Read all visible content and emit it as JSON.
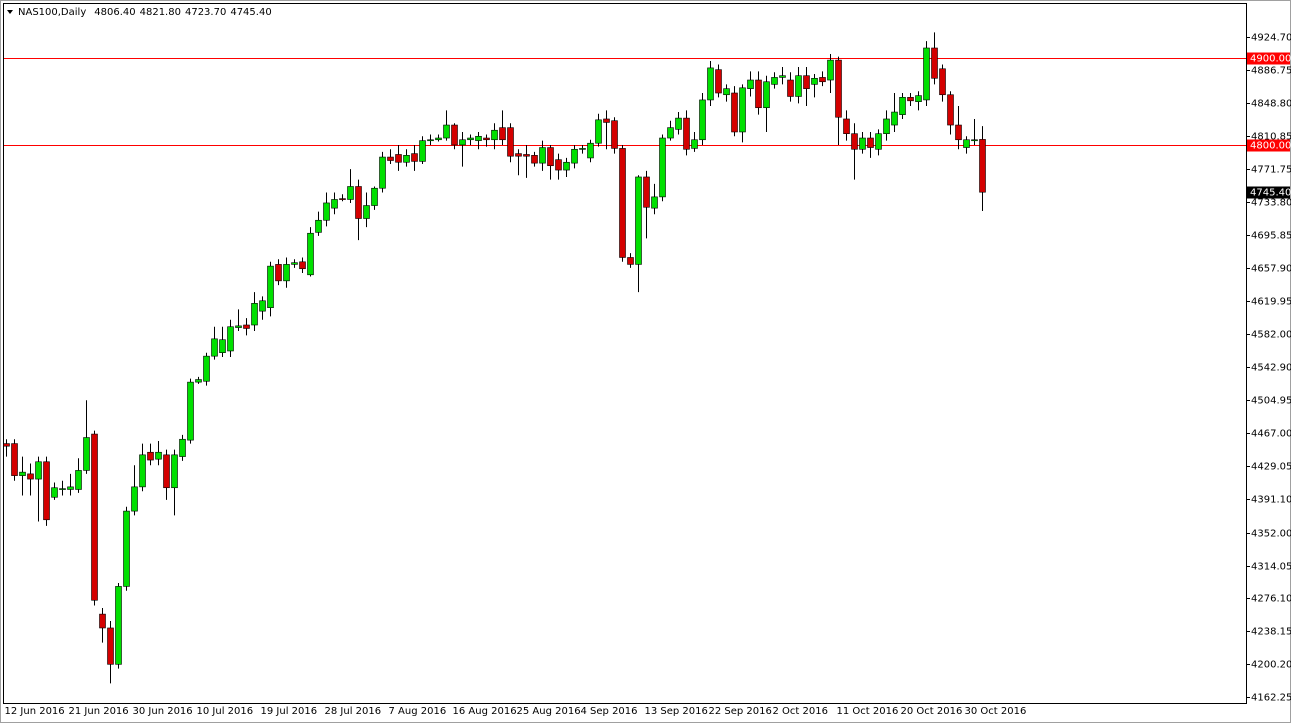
{
  "chart_data": {
    "type": "candlestick",
    "title": "NAS100,Daily",
    "header_values": [
      {
        "value": 4806.4,
        "label": "4806.40"
      },
      {
        "value": 4821.8,
        "label": "4821.80"
      },
      {
        "value": 4723.7,
        "label": "4723.70"
      },
      {
        "value": 4745.4,
        "label": "4745.40"
      }
    ],
    "categories": [
      "12 Jun 2016",
      null,
      null,
      null,
      null,
      null,
      null,
      null,
      "21 Jun 2016",
      null,
      null,
      null,
      null,
      null,
      null,
      null,
      "30 Jun 2016",
      null,
      null,
      null,
      null,
      null,
      null,
      null,
      "10 Jul 2016",
      null,
      null,
      null,
      null,
      null,
      null,
      null,
      "19 Jul 2016",
      null,
      null,
      null,
      null,
      null,
      null,
      null,
      "28 Jul 2016",
      null,
      null,
      null,
      null,
      null,
      null,
      null,
      "7 Aug 2016",
      null,
      null,
      null,
      null,
      null,
      null,
      null,
      "16 Aug 2016",
      null,
      null,
      null,
      null,
      null,
      null,
      null,
      "25 Aug 2016",
      null,
      null,
      null,
      null,
      null,
      null,
      null,
      "4 Sep 2016",
      null,
      null,
      null,
      null,
      null,
      null,
      null,
      "13 Sep 2016",
      null,
      null,
      null,
      null,
      null,
      null,
      null,
      "22 Sep 2016",
      null,
      null,
      null,
      null,
      null,
      null,
      null,
      "2 Oct 2016",
      null,
      null,
      null,
      null,
      null,
      null,
      null,
      "11 Oct 2016",
      null,
      null,
      null,
      null,
      null,
      null,
      null,
      "20 Oct 2016",
      null,
      null,
      null,
      null,
      null,
      null,
      null,
      "30 Oct 2016",
      null,
      null
    ],
    "open": [
      4455,
      4455,
      4418,
      4420,
      4414,
      4434,
      4393,
      4402,
      4402,
      4402,
      4424,
      4466,
      4258,
      4242,
      4200,
      4290,
      4377,
      4405,
      4445,
      4437,
      4442,
      4404,
      4440,
      4459,
      4526,
      4527,
      4556,
      4560,
      4562,
      4589,
      4592,
      4592,
      4608,
      4612,
      4662,
      4643,
      4662,
      4665,
      4650,
      4699,
      4713,
      4727,
      4738,
      4737,
      4752,
      4715,
      4730,
      4750,
      4786,
      4789,
      4780,
      4790,
      4781,
      4805,
      4806,
      4808,
      4823,
      4800,
      4806,
      4805,
      4808,
      4806,
      4820,
      4820,
      4790,
      4789,
      4788,
      4779,
      4797,
      4783,
      4771,
      4779,
      4796,
      4785,
      4802,
      4830,
      4828,
      4796,
      4670,
      4662,
      4763,
      4727,
      4740,
      4808,
      4818,
      4831,
      4796,
      4806,
      4852,
      4887,
      4858,
      4860,
      4815,
      4865,
      4875,
      4843,
      4870,
      4878,
      4875,
      4856,
      4880,
      4870,
      4878,
      4875,
      4898,
      4830,
      4813,
      4795,
      4808,
      4795,
      4813,
      4823,
      4835,
      4855,
      4850,
      4852,
      4912,
      4888,
      4858,
      4823,
      4797,
      4806,
      4806.4
    ],
    "high": [
      4460,
      4460,
      4440,
      4432,
      4440,
      4440,
      4410,
      4412,
      4420,
      4438,
      4505,
      4470,
      4265,
      4250,
      4294,
      4382,
      4430,
      4455,
      4455,
      4458,
      4448,
      4448,
      4465,
      4530,
      4532,
      4560,
      4590,
      4590,
      4598,
      4610,
      4600,
      4630,
      4625,
      4665,
      4668,
      4670,
      4668,
      4670,
      4705,
      4723,
      4745,
      4745,
      4743,
      4772,
      4760,
      4745,
      4752,
      4792,
      4795,
      4800,
      4795,
      4800,
      4810,
      4812,
      4812,
      4840,
      4825,
      4815,
      4812,
      4815,
      4812,
      4825,
      4840,
      4825,
      4795,
      4800,
      4792,
      4805,
      4800,
      4790,
      4785,
      4800,
      4800,
      4806,
      4836,
      4840,
      4832,
      4800,
      4675,
      4765,
      4770,
      4755,
      4812,
      4828,
      4838,
      4840,
      4815,
      4860,
      4897,
      4893,
      4870,
      4868,
      4870,
      4885,
      4885,
      4880,
      4884,
      4890,
      4884,
      4890,
      4890,
      4882,
      4885,
      4905,
      4902,
      4840,
      4825,
      4815,
      4815,
      4818,
      4840,
      4860,
      4860,
      4860,
      4862,
      4920,
      4930,
      4893,
      4862,
      4845,
      4810,
      4830,
      4821.8
    ],
    "low": [
      4440,
      4412,
      4395,
      4395,
      4365,
      4360,
      4390,
      4395,
      4395,
      4398,
      4420,
      4268,
      4225,
      4178,
      4195,
      4285,
      4372,
      4400,
      4430,
      4430,
      4390,
      4372,
      4435,
      4455,
      4524,
      4522,
      4552,
      4555,
      4555,
      4585,
      4580,
      4585,
      4598,
      4602,
      4638,
      4635,
      4658,
      4652,
      4648,
      4695,
      4706,
      4720,
      4735,
      4733,
      4690,
      4705,
      4725,
      4745,
      4778,
      4770,
      4775,
      4770,
      4778,
      4800,
      4804,
      4805,
      4795,
      4775,
      4800,
      4795,
      4798,
      4795,
      4800,
      4780,
      4765,
      4762,
      4775,
      4770,
      4760,
      4760,
      4763,
      4773,
      4790,
      4780,
      4798,
      4795,
      4790,
      4665,
      4658,
      4630,
      4692,
      4720,
      4735,
      4805,
      4812,
      4788,
      4792,
      4800,
      4845,
      4855,
      4850,
      4810,
      4803,
      4856,
      4835,
      4815,
      4865,
      4870,
      4850,
      4848,
      4845,
      4855,
      4868,
      4860,
      4800,
      4805,
      4760,
      4790,
      4785,
      4788,
      4805,
      4815,
      4830,
      4845,
      4840,
      4845,
      4870,
      4850,
      4812,
      4795,
      4790,
      4800,
      4723.7
    ],
    "close": [
      4452,
      4418,
      4422,
      4414,
      4434,
      4367,
      4404,
      4403,
      4405,
      4424,
      4462,
      4274,
      4242,
      4200,
      4290,
      4377,
      4405,
      4442,
      4436,
      4445,
      4404,
      4442,
      4460,
      4526,
      4529,
      4556,
      4576,
      4575,
      4590,
      4591,
      4588,
      4617,
      4620,
      4660,
      4643,
      4662,
      4664,
      4657,
      4698,
      4713,
      4733,
      4737,
      4737,
      4752,
      4715,
      4730,
      4750,
      4786,
      4782,
      4780,
      4788,
      4781,
      4805,
      4806,
      4808,
      4823,
      4800,
      4806,
      4808,
      4810,
      4806,
      4817,
      4806,
      4787,
      4787,
      4787,
      4779,
      4797,
      4776,
      4771,
      4780,
      4795,
      4796,
      4802,
      4829,
      4826,
      4796,
      4670,
      4662,
      4763,
      4728,
      4740,
      4808,
      4820,
      4831,
      4795,
      4806,
      4852,
      4889,
      4860,
      4865,
      4815,
      4866,
      4875,
      4843,
      4873,
      4878,
      4880,
      4856,
      4880,
      4865,
      4877,
      4873,
      4898,
      4832,
      4813,
      4795,
      4808,
      4797,
      4813,
      4830,
      4838,
      4855,
      4851,
      4857,
      4912,
      4877,
      4858,
      4823,
      4806,
      4806,
      4806,
      4745.4
    ],
    "up_color": "#00e000",
    "down_color": "#d40000",
    "wick_color": "#000000",
    "ylim": [
      4155.32,
      4963.98
    ],
    "yticks": [
      {
        "value": 4924.7,
        "label": "4924.70"
      },
      {
        "value": 4886.75,
        "label": "4886.75"
      },
      {
        "value": 4848.8,
        "label": "4848.80"
      },
      {
        "value": 4810.85,
        "label": "4810.85"
      },
      {
        "value": 4771.75,
        "label": "4771.75"
      },
      {
        "value": 4733.8,
        "label": "4733.80"
      },
      {
        "value": 4695.85,
        "label": "4695.85"
      },
      {
        "value": 4657.9,
        "label": "4657.90"
      },
      {
        "value": 4619.95,
        "label": "4619.95"
      },
      {
        "value": 4582,
        "label": "4582.00"
      },
      {
        "value": 4542.9,
        "label": "4542.90"
      },
      {
        "value": 4504.95,
        "label": "4504.95"
      },
      {
        "value": 4467,
        "label": "4467.00"
      },
      {
        "value": 4429.05,
        "label": "4429.05"
      },
      {
        "value": 4391.1,
        "label": "4391.10"
      },
      {
        "value": 4352,
        "label": "4352.00"
      },
      {
        "value": 4314.05,
        "label": "4314.05"
      },
      {
        "value": 4276.1,
        "label": "4276.10"
      },
      {
        "value": 4238.15,
        "label": "4238.15"
      },
      {
        "value": 4200.2,
        "label": "4200.20"
      },
      {
        "value": 4162.25,
        "label": "4162.25"
      }
    ],
    "hlines": [
      {
        "value": 4900,
        "label": "4900.00"
      },
      {
        "value": 4800,
        "label": "4800.00"
      }
    ],
    "hline_color": "#ff0000",
    "price_line": {
      "value": 4745.4,
      "label": "4745.40"
    },
    "grid": false
  }
}
